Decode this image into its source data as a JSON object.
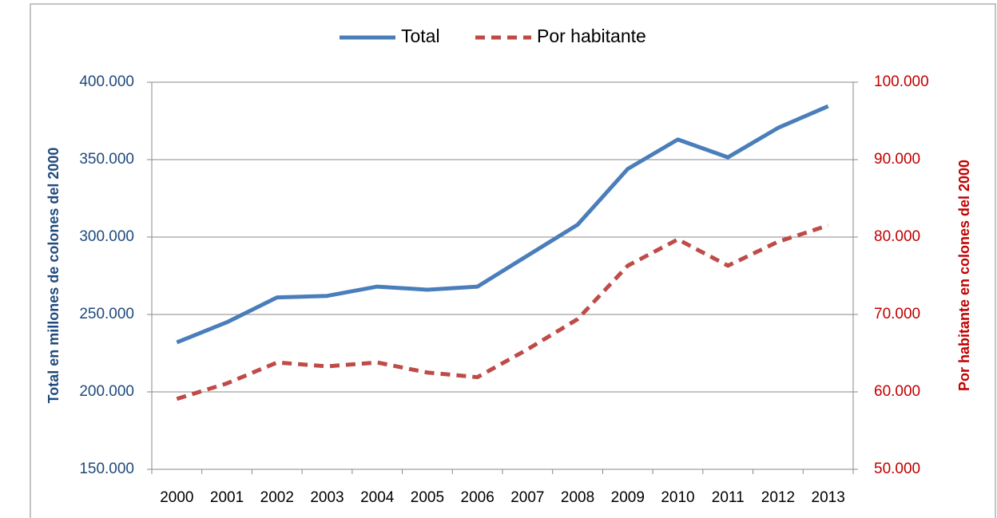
{
  "chart_data": {
    "type": "line",
    "categories": [
      "2000",
      "2001",
      "2002",
      "2003",
      "2004",
      "2005",
      "2006",
      "2007",
      "2008",
      "2009",
      "2010",
      "2011",
      "2012",
      "2013"
    ],
    "series": [
      {
        "name": "Total",
        "color": "#4a7ebb",
        "dash": false,
        "values": [
          232000,
          245000,
          261000,
          262000,
          268000,
          266000,
          268000,
          288000,
          308000,
          344000,
          363000,
          351500,
          370500,
          384500
        ]
      },
      {
        "name": "Por habitante",
        "color": "#be4b48",
        "dash": true,
        "axis": "y2",
        "values": [
          59100,
          61100,
          63800,
          63300,
          63800,
          62500,
          61900,
          65500,
          69400,
          76300,
          79700,
          76300,
          79400,
          81500
        ]
      }
    ],
    "ylabel": "Total en millones de colones del 2000",
    "y2label": "Por habitante en colones del 2000",
    "ylim": [
      150000,
      400000
    ],
    "yticks": [
      {
        "value": 150000,
        "label": "150.000"
      },
      {
        "value": 200000,
        "label": "200.000"
      },
      {
        "value": 250000,
        "label": "250.000"
      },
      {
        "value": 300000,
        "label": "300.000"
      },
      {
        "value": 350000,
        "label": "350.000"
      },
      {
        "value": 400000,
        "label": "400.000"
      }
    ],
    "y2lim": [
      50000,
      100000
    ],
    "y2ticks": [
      {
        "value": 50000,
        "label": "50.000"
      },
      {
        "value": 60000,
        "label": "60.000"
      },
      {
        "value": 70000,
        "label": "70.000"
      },
      {
        "value": 80000,
        "label": "80.000"
      },
      {
        "value": 90000,
        "label": "90.000"
      },
      {
        "value": 100000,
        "label": "100.000"
      }
    ],
    "ytick_color": "#1f497d",
    "y2tick_color": "#c00000",
    "grid": true,
    "legend": "top"
  }
}
